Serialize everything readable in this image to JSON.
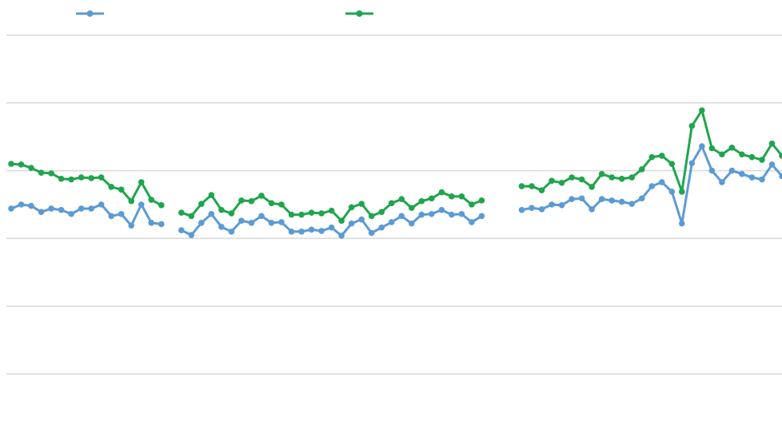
{
  "chart_data": {
    "type": "line",
    "categories": [
      null,
      null,
      null,
      null,
      null,
      null,
      null,
      null,
      null,
      null,
      null,
      null,
      null,
      null,
      null,
      null,
      null,
      null,
      null,
      null,
      null,
      null,
      null,
      null,
      null,
      null,
      null,
      null,
      null,
      null,
      null,
      null,
      null,
      null,
      null,
      null,
      null,
      null,
      null,
      null,
      null,
      null,
      null,
      null,
      null,
      null,
      null,
      null,
      null,
      null,
      null,
      null,
      null,
      null,
      null,
      null,
      null,
      null,
      null,
      null,
      null,
      null,
      null,
      null,
      null,
      null,
      null,
      null,
      null,
      null,
      null,
      null,
      null,
      null,
      null,
      null,
      null,
      null
    ],
    "series": [
      {
        "color": "#5b9bd5",
        "values": [
          2.44,
          2.5,
          2.48,
          2.39,
          2.44,
          2.42,
          2.36,
          2.44,
          2.44,
          2.5,
          2.33,
          2.36,
          2.19,
          2.5,
          2.23,
          2.21,
          null,
          2.12,
          2.05,
          2.23,
          2.36,
          2.17,
          2.1,
          2.26,
          2.23,
          2.33,
          2.23,
          2.24,
          2.1,
          2.1,
          2.13,
          2.11,
          2.16,
          2.04,
          2.22,
          2.28,
          2.08,
          2.16,
          2.24,
          2.33,
          2.22,
          2.35,
          2.36,
          2.42,
          2.35,
          2.36,
          2.24,
          2.33,
          null,
          null,
          null,
          2.42,
          2.45,
          2.43,
          2.5,
          2.49,
          2.58,
          2.59,
          2.43,
          2.58,
          2.56,
          2.54,
          2.51,
          2.59,
          2.77,
          2.83,
          2.69,
          2.22,
          3.11,
          3.36,
          3.0,
          2.83,
          3.0,
          2.95,
          2.9,
          2.87,
          3.09,
          2.92
        ]
      },
      {
        "color": "#1fa54d",
        "values": [
          3.1,
          3.09,
          3.04,
          2.97,
          2.96,
          2.88,
          2.87,
          2.9,
          2.89,
          2.9,
          2.76,
          2.72,
          2.55,
          2.83,
          2.57,
          2.49,
          null,
          2.38,
          2.33,
          2.51,
          2.64,
          2.42,
          2.37,
          2.56,
          2.55,
          2.63,
          2.52,
          2.5,
          2.35,
          2.35,
          2.38,
          2.37,
          2.41,
          2.26,
          2.46,
          2.51,
          2.33,
          2.39,
          2.52,
          2.58,
          2.45,
          2.55,
          2.59,
          2.68,
          2.62,
          2.62,
          2.5,
          2.56,
          null,
          null,
          null,
          2.77,
          2.77,
          2.71,
          2.85,
          2.82,
          2.9,
          2.87,
          2.76,
          2.95,
          2.9,
          2.88,
          2.9,
          3.02,
          3.2,
          3.22,
          3.1,
          2.69,
          3.66,
          3.89,
          3.33,
          3.24,
          3.34,
          3.24,
          3.2,
          3.16,
          3.4,
          3.22
        ]
      }
    ],
    "ylim": [
      0,
      5
    ],
    "yticks": [
      0,
      1,
      2,
      3,
      4,
      5
    ],
    "grid": true
  }
}
